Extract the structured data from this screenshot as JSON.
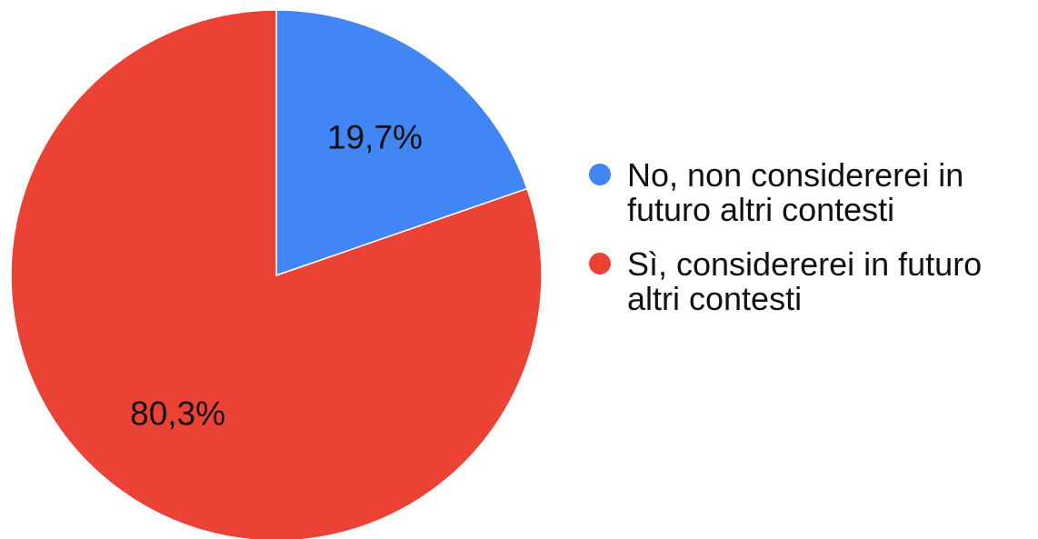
{
  "chart_data": {
    "type": "pie",
    "title": "",
    "legend_position": "right",
    "slices": [
      {
        "name": "No, non considererei in futuro altri contesti",
        "legend_lines": [
          "No, non considererei in",
          "futuro altri contesti"
        ],
        "value": 19.7,
        "label": "19,7%",
        "color": "#4285F4"
      },
      {
        "name": "Sì, considererei in futuro altri contesti",
        "legend_lines": [
          "Sì, considererei in futuro",
          "altri contesti"
        ],
        "value": 80.3,
        "label": "80,3%",
        "color": "#EA4335"
      }
    ]
  }
}
